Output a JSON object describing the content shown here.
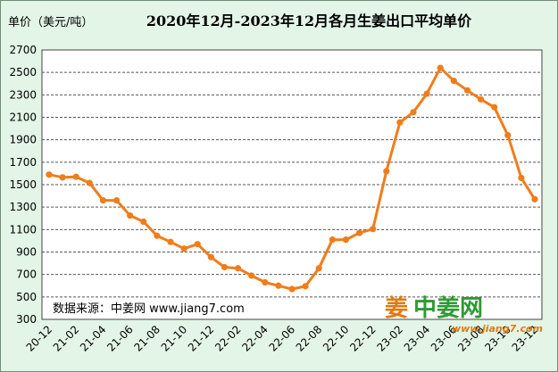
{
  "chart_data": {
    "type": "line",
    "title": "2020年12月-2023年12月各月生姜出口平均单价",
    "ylabel": "单价（美元/吨）",
    "xlabel": "",
    "ylim": [
      300,
      2700
    ],
    "yticks": [
      300,
      500,
      700,
      900,
      1100,
      1300,
      1500,
      1700,
      1900,
      2100,
      2300,
      2500,
      2700
    ],
    "grid": "horizontal-dashed",
    "line_color": "#f07d1a",
    "x": [
      "20-12",
      "21-01",
      "21-02",
      "21-03",
      "21-04",
      "21-05",
      "21-06",
      "21-07",
      "21-08",
      "21-09",
      "21-10",
      "21-11",
      "21-12",
      "22-01",
      "22-02",
      "22-03",
      "22-04",
      "22-05",
      "22-06",
      "22-07",
      "22-08",
      "22-09",
      "22-10",
      "22-11",
      "22-12",
      "23-01",
      "23-02",
      "23-03",
      "23-04",
      "23-05",
      "23-06",
      "23-07",
      "23-08",
      "23-09",
      "23-10",
      "23-11",
      "23-12"
    ],
    "xtick_labels": [
      "20-12",
      "21-02",
      "21-04",
      "21-06",
      "21-08",
      "21-10",
      "21-12",
      "22-02",
      "22-04",
      "22-06",
      "22-08",
      "22-10",
      "22-12",
      "23-02",
      "23-04",
      "23-06",
      "23-08",
      "23-10",
      "23-12"
    ],
    "series": [
      {
        "name": "",
        "values": [
          1590,
          1565,
          1570,
          1515,
          1360,
          1360,
          1225,
          1170,
          1045,
          990,
          930,
          970,
          855,
          765,
          755,
          690,
          630,
          600,
          570,
          595,
          755,
          1010,
          1010,
          1070,
          1105,
          1620,
          2055,
          2145,
          2310,
          2540,
          2425,
          2340,
          2260,
          2190,
          1940,
          1560,
          1370
        ]
      }
    ]
  },
  "source_note": "数据来源：中姜网 www.jiang7.com",
  "logo": {
    "mark": "姜",
    "name": "中姜网",
    "url": "www.jiang7.com"
  }
}
